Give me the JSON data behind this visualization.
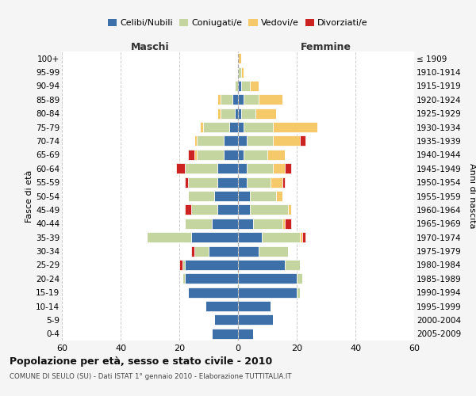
{
  "age_groups": [
    "0-4",
    "5-9",
    "10-14",
    "15-19",
    "20-24",
    "25-29",
    "30-34",
    "35-39",
    "40-44",
    "45-49",
    "50-54",
    "55-59",
    "60-64",
    "65-69",
    "70-74",
    "75-79",
    "80-84",
    "85-89",
    "90-94",
    "95-99",
    "100+"
  ],
  "birth_years": [
    "2005-2009",
    "2000-2004",
    "1995-1999",
    "1990-1994",
    "1985-1989",
    "1980-1984",
    "1975-1979",
    "1970-1974",
    "1965-1969",
    "1960-1964",
    "1955-1959",
    "1950-1954",
    "1945-1949",
    "1940-1944",
    "1935-1939",
    "1930-1934",
    "1925-1929",
    "1920-1924",
    "1915-1919",
    "1910-1914",
    "≤ 1909"
  ],
  "colors": {
    "celibe": "#3d6fa8",
    "coniugato": "#c5d5a0",
    "vedovo": "#f5c96a",
    "divorziato": "#cc2222"
  },
  "maschi": {
    "celibe": [
      9,
      8,
      11,
      17,
      18,
      18,
      10,
      16,
      9,
      7,
      8,
      7,
      7,
      5,
      5,
      3,
      1,
      2,
      0,
      0,
      0
    ],
    "coniugato": [
      0,
      0,
      0,
      0,
      1,
      1,
      5,
      15,
      9,
      9,
      9,
      10,
      11,
      9,
      9,
      9,
      5,
      4,
      1,
      0,
      0
    ],
    "vedovo": [
      0,
      0,
      0,
      0,
      0,
      0,
      0,
      0,
      0,
      0,
      0,
      0,
      0,
      1,
      1,
      1,
      1,
      1,
      0,
      0,
      0
    ],
    "divorziato": [
      0,
      0,
      0,
      0,
      0,
      1,
      1,
      0,
      0,
      2,
      0,
      1,
      3,
      2,
      0,
      0,
      0,
      0,
      0,
      0,
      0
    ]
  },
  "femmine": {
    "celibe": [
      5,
      12,
      11,
      20,
      20,
      16,
      7,
      8,
      5,
      4,
      4,
      3,
      3,
      2,
      3,
      2,
      1,
      2,
      1,
      0,
      0
    ],
    "coniugato": [
      0,
      0,
      0,
      1,
      2,
      5,
      10,
      13,
      10,
      13,
      9,
      8,
      9,
      8,
      9,
      10,
      5,
      5,
      3,
      1,
      0
    ],
    "vedovo": [
      0,
      0,
      0,
      0,
      0,
      0,
      0,
      1,
      1,
      1,
      2,
      4,
      4,
      6,
      9,
      15,
      7,
      8,
      3,
      1,
      1
    ],
    "divorziato": [
      0,
      0,
      0,
      0,
      0,
      0,
      0,
      1,
      2,
      0,
      0,
      1,
      2,
      0,
      2,
      0,
      0,
      0,
      0,
      0,
      0
    ]
  },
  "title": "Popolazione per età, sesso e stato civile - 2010",
  "subtitle": "COMUNE DI SEULO (SU) - Dati ISTAT 1° gennaio 2010 - Elaborazione TUTTITALIA.IT",
  "ylabel_left": "Fasce di età",
  "ylabel_right": "Anni di nascita",
  "xlabel_left": "Maschi",
  "xlabel_right": "Femmine",
  "xlim": 60,
  "legend_labels": [
    "Celibi/Nubili",
    "Coniugati/e",
    "Vedovi/e",
    "Divorziati/e"
  ],
  "bg_color": "#f5f5f5",
  "plot_bg": "#ffffff"
}
